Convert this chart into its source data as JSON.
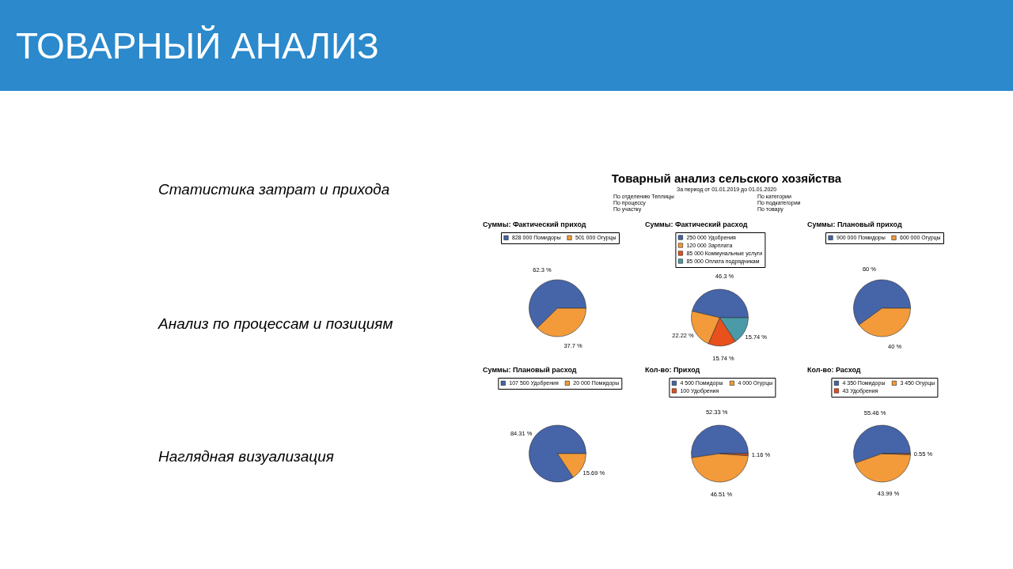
{
  "chart_data": [
    {
      "type": "other",
      "title": "ТОВАРНЫЙ АНАЛИЗ"
    },
    {
      "type": "other",
      "annotations": [
        "Статистика затрат и прихода",
        "Анализ по процессам и позициям",
        "Наглядная визуализация"
      ]
    },
    {
      "type": "other",
      "title": "Товарный анализ сельского хозяйства",
      "subtitle": "За период от 01.01.2019 до 01.01.2020",
      "annotations": [
        "По отделению Теплицы",
        "По процессу",
        "По участку",
        "По категории",
        "По подкатегории",
        "По товару"
      ]
    },
    {
      "type": "pie",
      "title": "Суммы: Фактический приход",
      "categories": [
        "828 000 Помидоры",
        "501 000 Огурцы"
      ],
      "values": [
        62.3,
        37.7
      ],
      "colors": [
        "#4664a8",
        "#f39b3a"
      ],
      "value_labels": [
        "62.3 %",
        "37.7 %"
      ],
      "legend": "top"
    },
    {
      "type": "pie",
      "title": "Суммы: Фактический расход",
      "categories": [
        "250 000 Удобрения",
        "120 000 Зарплата",
        "85 000 Коммунальные услуги",
        "85 000 Оплата подрядчикам"
      ],
      "values": [
        46.3,
        22.22,
        15.74,
        15.74
      ],
      "colors": [
        "#4664a8",
        "#f39b3a",
        "#e8501c",
        "#4b9aa8"
      ],
      "value_labels": [
        "46.3 %",
        "22.22 %",
        "15.74 %",
        "15.74 %"
      ],
      "legend": "top"
    },
    {
      "type": "pie",
      "title": "Суммы: Плановый приход",
      "categories": [
        "900 000 Помидоры",
        "600 000 Огурцы"
      ],
      "values": [
        60,
        40
      ],
      "colors": [
        "#4664a8",
        "#f39b3a"
      ],
      "value_labels": [
        "60 %",
        "40 %"
      ],
      "legend": "top"
    },
    {
      "type": "pie",
      "title": "Суммы: Плановый расход",
      "categories": [
        "107 500 Удобрения",
        "20 000 Помидоры"
      ],
      "values": [
        84.31,
        15.69
      ],
      "colors": [
        "#4664a8",
        "#f39b3a"
      ],
      "value_labels": [
        "84.31 %",
        "15.69 %"
      ],
      "legend": "top"
    },
    {
      "type": "pie",
      "title": "Кол-во: Приход",
      "categories": [
        "4 500 Помидоры",
        "4 000 Огурцы",
        "100 Удобрения"
      ],
      "values": [
        52.33,
        46.51,
        1.16
      ],
      "colors": [
        "#4664a8",
        "#f39b3a",
        "#e0501e"
      ],
      "value_labels": [
        "52.33 %",
        "46.51 %",
        "1.16 %"
      ],
      "legend": "top"
    },
    {
      "type": "pie",
      "title": "Кол-во: Расход",
      "categories": [
        "4 350 Помидоры",
        "3 450 Огурцы",
        "43 Удобрения"
      ],
      "values": [
        55.46,
        43.99,
        0.55
      ],
      "colors": [
        "#4664a8",
        "#f39b3a",
        "#e0501e"
      ],
      "value_labels": [
        "55.46 %",
        "43.99 %",
        "0.55 %"
      ],
      "legend": "top"
    }
  ]
}
